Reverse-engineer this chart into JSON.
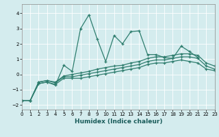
{
  "xlabel": "Humidex (Indice chaleur)",
  "bg_color": "#d4ecee",
  "grid_color": "#ffffff",
  "grid_minor_color": "#e8f4f5",
  "line_color": "#2e7d6e",
  "xlim": [
    0,
    23
  ],
  "ylim": [
    -2.3,
    4.6
  ],
  "xticks": [
    0,
    1,
    2,
    3,
    4,
    5,
    6,
    7,
    8,
    9,
    10,
    11,
    12,
    13,
    14,
    15,
    16,
    17,
    18,
    19,
    20,
    21,
    22,
    23
  ],
  "yticks": [
    -2,
    -1,
    0,
    1,
    2,
    3,
    4
  ],
  "series": [
    [
      0,
      1,
      2,
      3,
      4,
      5,
      6,
      7,
      8,
      9,
      10,
      11,
      12,
      13,
      14,
      15,
      16,
      17,
      18,
      19,
      20,
      21,
      22,
      23
    ],
    [
      -1.7,
      -1.7,
      -0.6,
      -0.5,
      -0.7,
      0.6,
      0.2,
      3.0,
      3.9,
      2.3,
      0.85,
      2.55,
      2.0,
      2.8,
      2.85,
      1.3,
      1.3,
      1.1,
      1.05,
      1.85,
      1.5,
      1.1,
      null,
      null
    ],
    [
      -1.7,
      -1.7,
      -0.6,
      -0.5,
      -0.65,
      -0.25,
      -0.25,
      -0.25,
      -0.15,
      -0.05,
      0.05,
      0.15,
      0.25,
      0.35,
      0.45,
      0.65,
      0.75,
      0.75,
      0.85,
      0.95,
      0.85,
      0.75,
      0.35,
      0.25
    ],
    [
      -1.7,
      -1.7,
      -0.5,
      -0.4,
      -0.55,
      -0.15,
      -0.15,
      -0.05,
      0.05,
      0.15,
      0.25,
      0.35,
      0.45,
      0.55,
      0.65,
      0.85,
      0.95,
      0.95,
      1.05,
      1.15,
      1.15,
      1.05,
      0.55,
      0.35
    ],
    [
      -1.7,
      -1.7,
      -0.5,
      -0.4,
      -0.5,
      -0.1,
      0.0,
      0.1,
      0.2,
      0.35,
      0.45,
      0.55,
      0.6,
      0.75,
      0.85,
      1.05,
      1.15,
      1.15,
      1.25,
      1.35,
      1.35,
      1.25,
      0.75,
      0.55
    ]
  ]
}
